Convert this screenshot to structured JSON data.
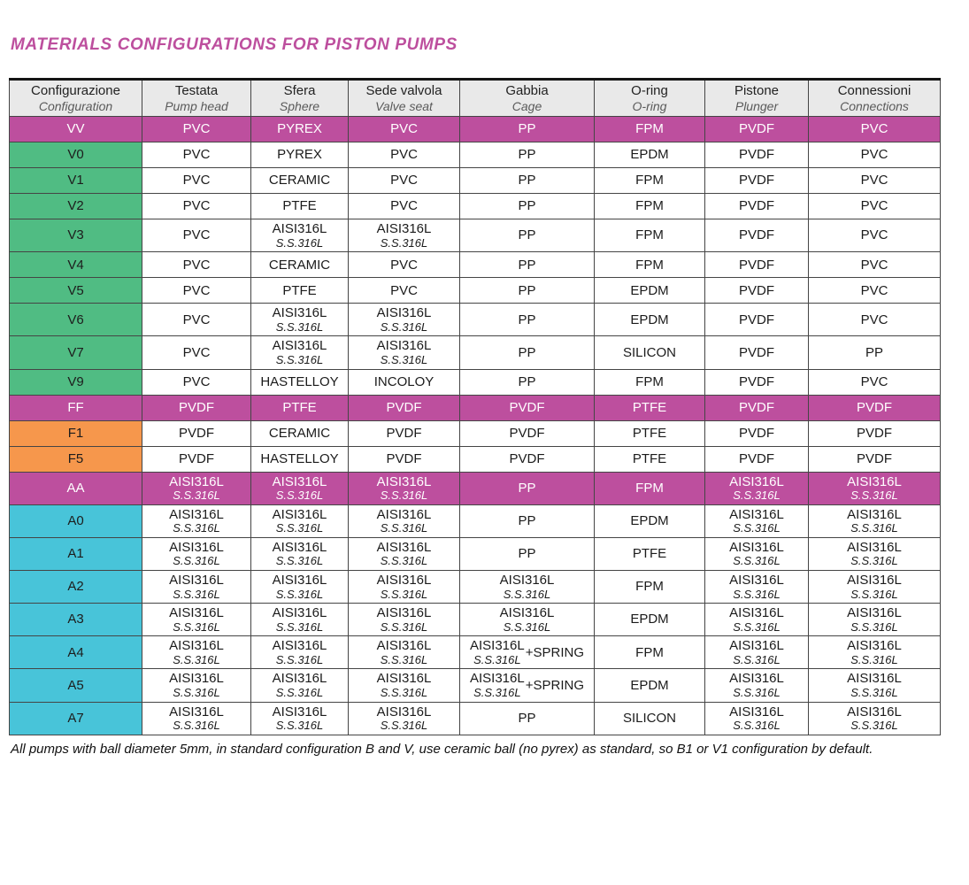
{
  "page": {
    "title": "MATERIALS CONFIGURATIONS FOR PISTON PUMPS",
    "footnote": "All pumps with ball diameter 5mm, in standard configuration B and V, use ceramic ball (no pyrex) as standard, so B1 or V1 configuration by default."
  },
  "colors": {
    "accent_magenta": "#bd4f9e",
    "green": "#50bc83",
    "orange": "#f6974c",
    "cyan": "#48c4d9",
    "header_bg": "#e9e9e9",
    "border": "#454545"
  },
  "table": {
    "columns": [
      {
        "it": "Configurazione",
        "en": "Configuration"
      },
      {
        "it": "Testata",
        "en": "Pump head"
      },
      {
        "it": "Sfera",
        "en": "Sphere"
      },
      {
        "it": "Sede valvola",
        "en": "Valve seat"
      },
      {
        "it": "Gabbia",
        "en": "Cage"
      },
      {
        "it": "O-ring",
        "en": "O-ring"
      },
      {
        "it": "Pistone",
        "en": "Plunger"
      },
      {
        "it": "Connessioni",
        "en": "Connections"
      }
    ],
    "rows": [
      {
        "code": "VV",
        "style": "magenta",
        "cells": [
          "PVC",
          "PYREX",
          "PVC",
          "PP",
          "FPM",
          "PVDF",
          "PVC"
        ]
      },
      {
        "code": "V0",
        "style": "green",
        "cells": [
          "PVC",
          "PYREX",
          "PVC",
          "PP",
          "EPDM",
          "PVDF",
          "PVC"
        ]
      },
      {
        "code": "V1",
        "style": "green",
        "cells": [
          "PVC",
          "CERAMIC",
          "PVC",
          "PP",
          "FPM",
          "PVDF",
          "PVC"
        ]
      },
      {
        "code": "V2",
        "style": "green",
        "cells": [
          "PVC",
          "PTFE",
          "PVC",
          "PP",
          "FPM",
          "PVDF",
          "PVC"
        ]
      },
      {
        "code": "V3",
        "style": "green",
        "cells": [
          "PVC",
          {
            "main": "AISI316L",
            "sub": "S.S.316L"
          },
          {
            "main": "AISI316L",
            "sub": "S.S.316L"
          },
          "PP",
          "FPM",
          "PVDF",
          "PVC"
        ]
      },
      {
        "code": "V4",
        "style": "green",
        "cells": [
          "PVC",
          "CERAMIC",
          "PVC",
          "PP",
          "FPM",
          "PVDF",
          "PVC"
        ]
      },
      {
        "code": "V5",
        "style": "green",
        "cells": [
          "PVC",
          "PTFE",
          "PVC",
          "PP",
          "EPDM",
          "PVDF",
          "PVC"
        ]
      },
      {
        "code": "V6",
        "style": "green",
        "cells": [
          "PVC",
          {
            "main": "AISI316L",
            "sub": "S.S.316L"
          },
          {
            "main": "AISI316L",
            "sub": "S.S.316L"
          },
          "PP",
          "EPDM",
          "PVDF",
          "PVC"
        ]
      },
      {
        "code": "V7",
        "style": "green",
        "cells": [
          "PVC",
          {
            "main": "AISI316L",
            "sub": "S.S.316L"
          },
          {
            "main": "AISI316L",
            "sub": "S.S.316L"
          },
          "PP",
          "SILICON",
          "PVDF",
          "PP"
        ]
      },
      {
        "code": "V9",
        "style": "green",
        "cells": [
          "PVC",
          "HASTELLOY",
          "INCOLOY",
          "PP",
          "FPM",
          "PVDF",
          "PVC"
        ]
      },
      {
        "code": "FF",
        "style": "magenta",
        "cells": [
          "PVDF",
          "PTFE",
          "PVDF",
          "PVDF",
          "PTFE",
          "PVDF",
          "PVDF"
        ]
      },
      {
        "code": "F1",
        "style": "orange",
        "cells": [
          "PVDF",
          "CERAMIC",
          "PVDF",
          "PVDF",
          "PTFE",
          "PVDF",
          "PVDF"
        ]
      },
      {
        "code": "F5",
        "style": "orange",
        "cells": [
          "PVDF",
          "HASTELLOY",
          "PVDF",
          "PVDF",
          "PTFE",
          "PVDF",
          "PVDF"
        ]
      },
      {
        "code": "AA",
        "style": "magenta",
        "cells": [
          {
            "main": "AISI316L",
            "sub": "S.S.316L"
          },
          {
            "main": "AISI316L",
            "sub": "S.S.316L"
          },
          {
            "main": "AISI316L",
            "sub": "S.S.316L"
          },
          "PP",
          "FPM",
          {
            "main": "AISI316L",
            "sub": "S.S.316L"
          },
          {
            "main": "AISI316L",
            "sub": "S.S.316L"
          }
        ]
      },
      {
        "code": "A0",
        "style": "cyan",
        "cells": [
          {
            "main": "AISI316L",
            "sub": "S.S.316L"
          },
          {
            "main": "AISI316L",
            "sub": "S.S.316L"
          },
          {
            "main": "AISI316L",
            "sub": "S.S.316L"
          },
          "PP",
          "EPDM",
          {
            "main": "AISI316L",
            "sub": "S.S.316L"
          },
          {
            "main": "AISI316L",
            "sub": "S.S.316L"
          }
        ]
      },
      {
        "code": "A1",
        "style": "cyan",
        "cells": [
          {
            "main": "AISI316L",
            "sub": "S.S.316L"
          },
          {
            "main": "AISI316L",
            "sub": "S.S.316L"
          },
          {
            "main": "AISI316L",
            "sub": "S.S.316L"
          },
          "PP",
          "PTFE",
          {
            "main": "AISI316L",
            "sub": "S.S.316L"
          },
          {
            "main": "AISI316L",
            "sub": "S.S.316L"
          }
        ]
      },
      {
        "code": "A2",
        "style": "cyan",
        "cells": [
          {
            "main": "AISI316L",
            "sub": "S.S.316L"
          },
          {
            "main": "AISI316L",
            "sub": "S.S.316L"
          },
          {
            "main": "AISI316L",
            "sub": "S.S.316L"
          },
          {
            "main": "AISI316L",
            "sub": "S.S.316L"
          },
          "FPM",
          {
            "main": "AISI316L",
            "sub": "S.S.316L"
          },
          {
            "main": "AISI316L",
            "sub": "S.S.316L"
          }
        ]
      },
      {
        "code": "A3",
        "style": "cyan",
        "cells": [
          {
            "main": "AISI316L",
            "sub": "S.S.316L"
          },
          {
            "main": "AISI316L",
            "sub": "S.S.316L"
          },
          {
            "main": "AISI316L",
            "sub": "S.S.316L"
          },
          {
            "main": "AISI316L",
            "sub": "S.S.316L"
          },
          "EPDM",
          {
            "main": "AISI316L",
            "sub": "S.S.316L"
          },
          {
            "main": "AISI316L",
            "sub": "S.S.316L"
          }
        ]
      },
      {
        "code": "A4",
        "style": "cyan",
        "cells": [
          {
            "main": "AISI316L",
            "sub": "S.S.316L"
          },
          {
            "main": "AISI316L",
            "sub": "S.S.316L"
          },
          {
            "main": "AISI316L",
            "sub": "S.S.316L"
          },
          {
            "main": "AISI316L",
            "sub": "S.S.316L",
            "suffix": "+SPRING"
          },
          "FPM",
          {
            "main": "AISI316L",
            "sub": "S.S.316L"
          },
          {
            "main": "AISI316L",
            "sub": "S.S.316L"
          }
        ]
      },
      {
        "code": "A5",
        "style": "cyan",
        "cells": [
          {
            "main": "AISI316L",
            "sub": "S.S.316L"
          },
          {
            "main": "AISI316L",
            "sub": "S.S.316L"
          },
          {
            "main": "AISI316L",
            "sub": "S.S.316L"
          },
          {
            "main": "AISI316L",
            "sub": "S.S.316L",
            "suffix": "+SPRING"
          },
          "EPDM",
          {
            "main": "AISI316L",
            "sub": "S.S.316L"
          },
          {
            "main": "AISI316L",
            "sub": "S.S.316L"
          }
        ]
      },
      {
        "code": "A7",
        "style": "cyan",
        "cells": [
          {
            "main": "AISI316L",
            "sub": "S.S.316L"
          },
          {
            "main": "AISI316L",
            "sub": "S.S.316L"
          },
          {
            "main": "AISI316L",
            "sub": "S.S.316L"
          },
          "PP",
          "SILICON",
          {
            "main": "AISI316L",
            "sub": "S.S.316L"
          },
          {
            "main": "AISI316L",
            "sub": "S.S.316L"
          }
        ]
      }
    ]
  }
}
